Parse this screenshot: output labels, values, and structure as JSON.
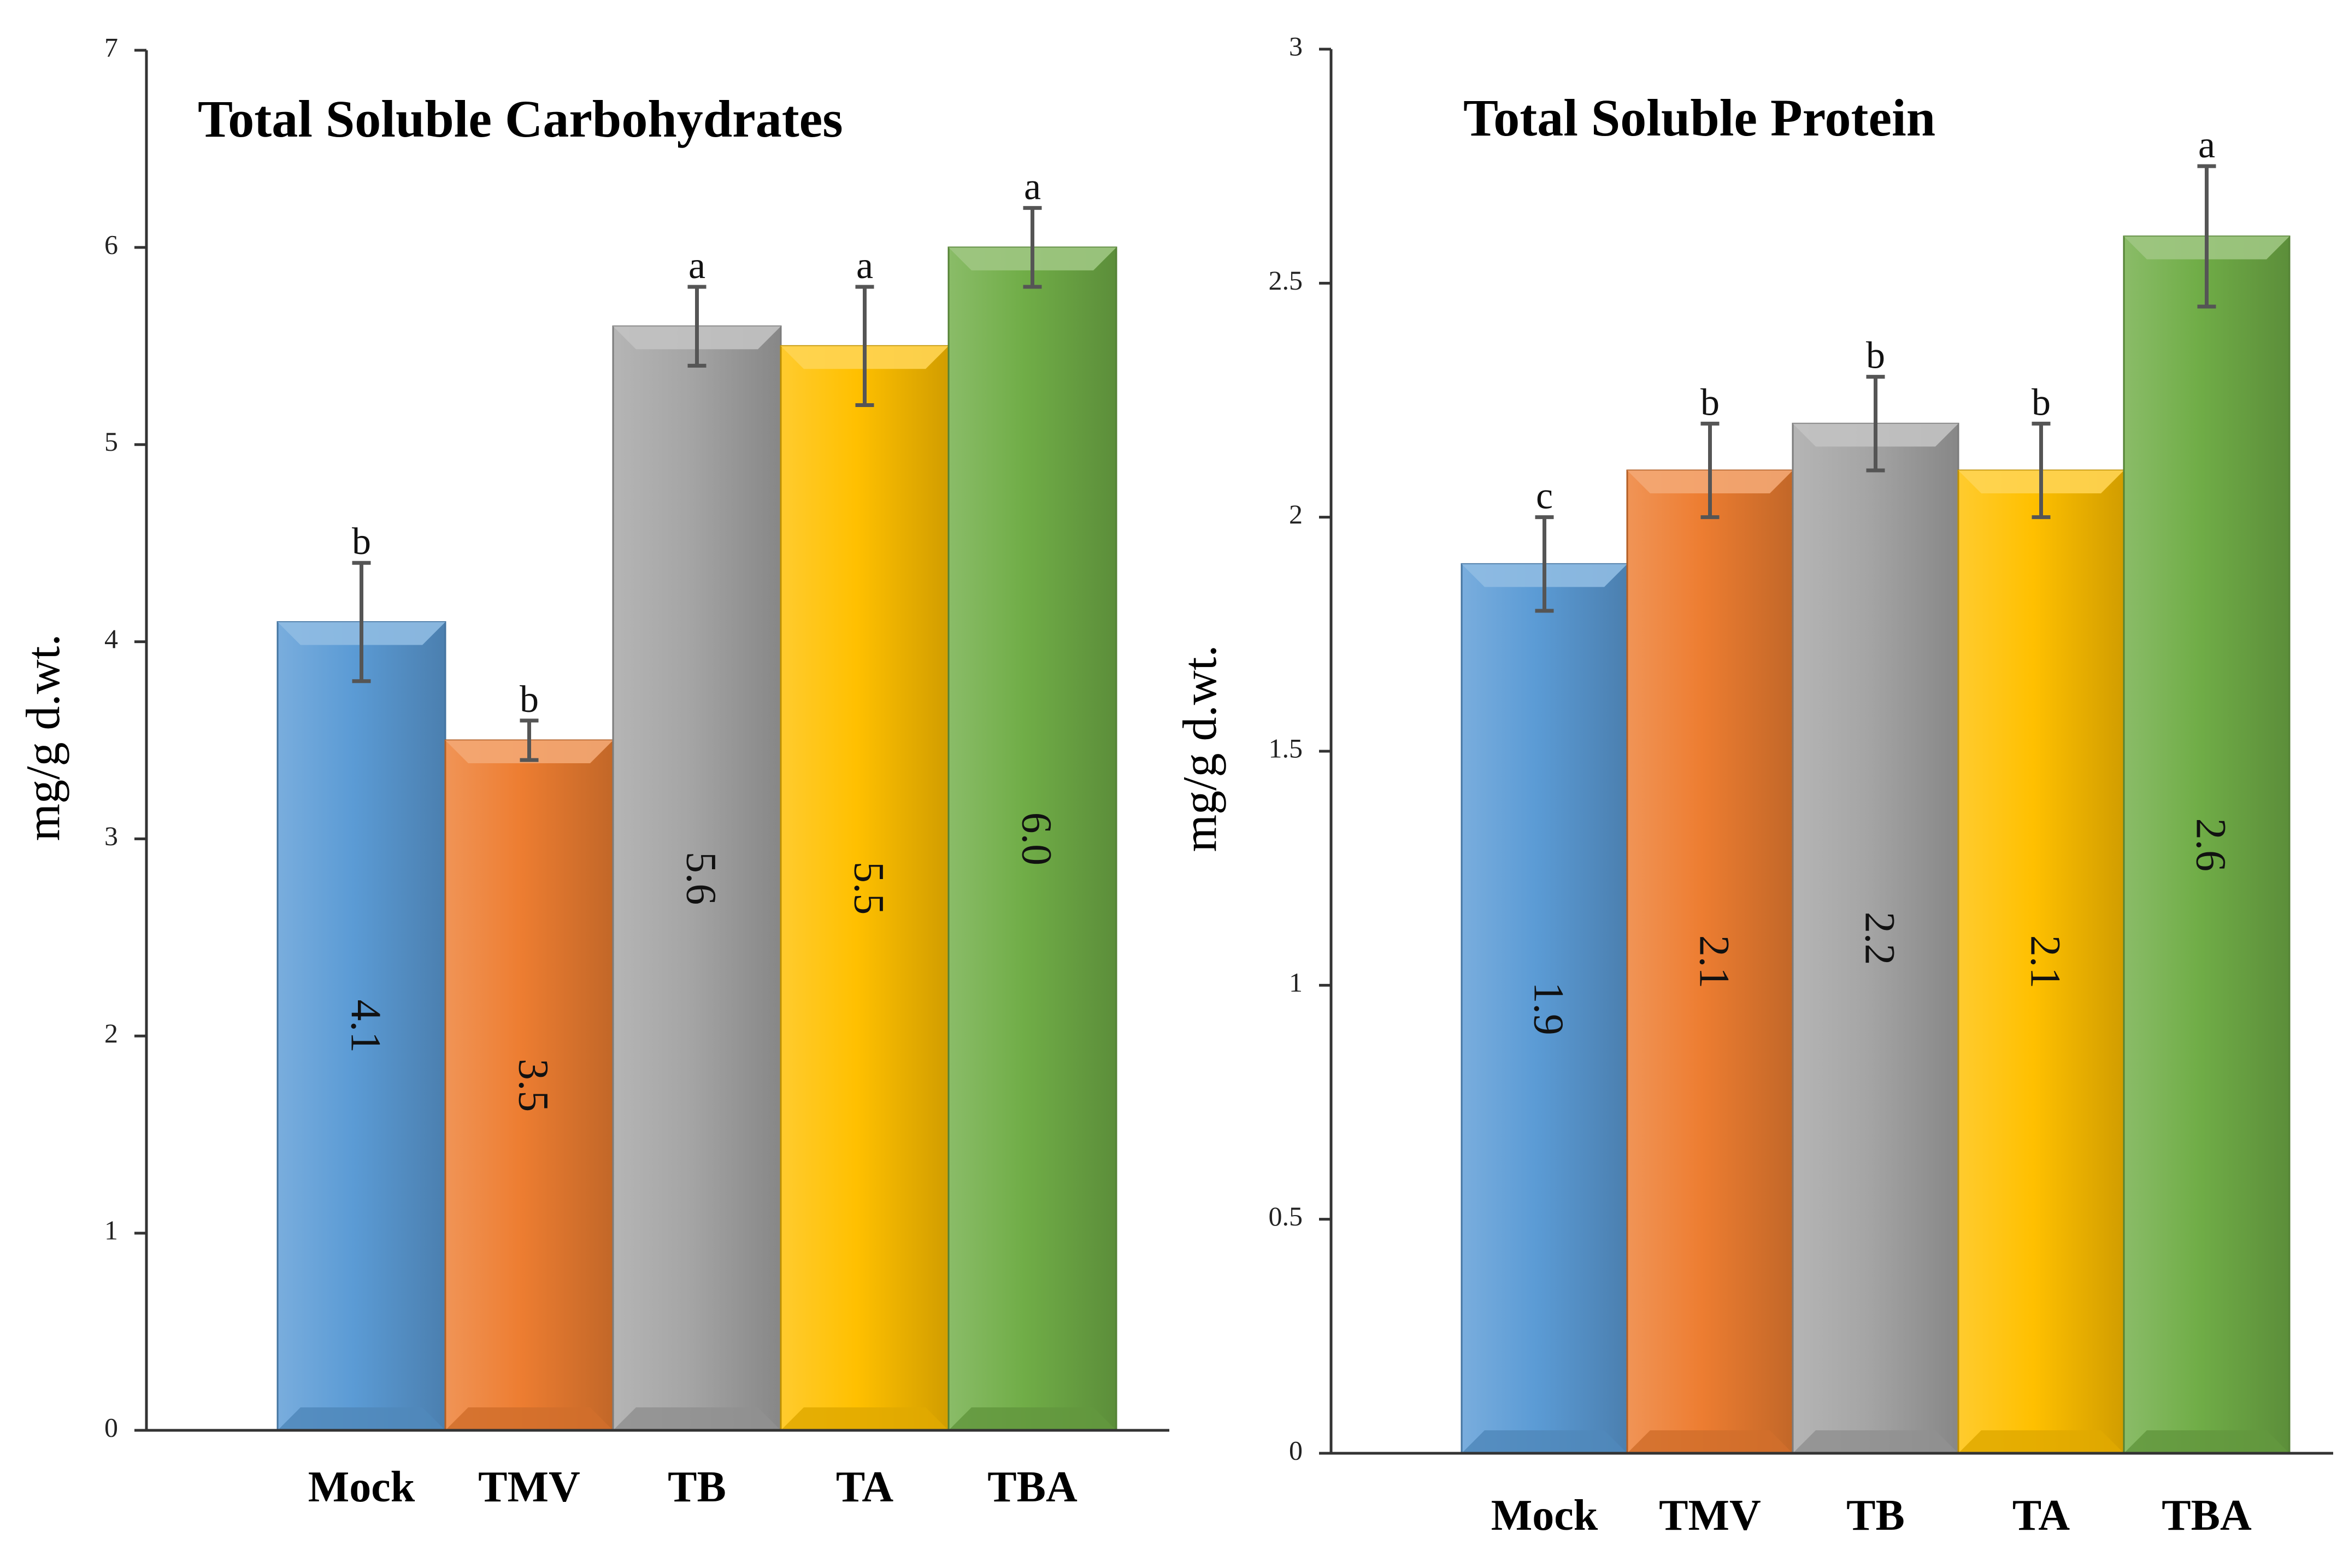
{
  "chart_data": [
    {
      "type": "bar",
      "title": "Total Soluble Carbohydrates",
      "xlabel": "",
      "ylabel": "mg/g  d.wt.",
      "ylim": [
        0,
        7
      ],
      "yticks": [
        0,
        1,
        2,
        3,
        4,
        5,
        6,
        7
      ],
      "ytick_labels": [
        "0",
        "1",
        "2",
        "3",
        "4",
        "5",
        "6",
        "7"
      ],
      "categories": [
        "Mock",
        "TMV",
        "TB",
        "TA",
        "TBA"
      ],
      "values": [
        4.1,
        3.5,
        5.6,
        5.5,
        6.0
      ],
      "value_labels": [
        "4.1",
        "3.5",
        "5.6",
        "5.5",
        "6.0"
      ],
      "errors": [
        0.3,
        0.1,
        0.2,
        0.3,
        0.2
      ],
      "significance": [
        "b",
        "b",
        "a",
        "a",
        "a"
      ],
      "colors": [
        "#5b9bd5",
        "#ed7d31",
        "#a5a5a5",
        "#ffc000",
        "#70ad47"
      ],
      "grid": false
    },
    {
      "type": "bar",
      "title": "Total Soluble Protein",
      "xlabel": "",
      "ylabel": "mg/g  d.wt.",
      "ylim": [
        0,
        3
      ],
      "yticks": [
        0,
        0.5,
        1,
        1.5,
        2,
        2.5,
        3
      ],
      "ytick_labels": [
        "0",
        "0.5",
        "1",
        "1.5",
        "2",
        "2.5",
        "3"
      ],
      "categories": [
        "Mock",
        "TMV",
        "TB",
        "TA",
        "TBA"
      ],
      "values": [
        1.9,
        2.1,
        2.2,
        2.1,
        2.6
      ],
      "value_labels": [
        "1.9",
        "2.1",
        "2.2",
        "2.1",
        "2.6"
      ],
      "errors": [
        0.1,
        0.1,
        0.1,
        0.1,
        0.15
      ],
      "significance": [
        "c",
        "b",
        "b",
        "b",
        "a"
      ],
      "colors": [
        "#5b9bd5",
        "#ed7d31",
        "#a5a5a5",
        "#ffc000",
        "#70ad47"
      ],
      "grid": false
    }
  ]
}
